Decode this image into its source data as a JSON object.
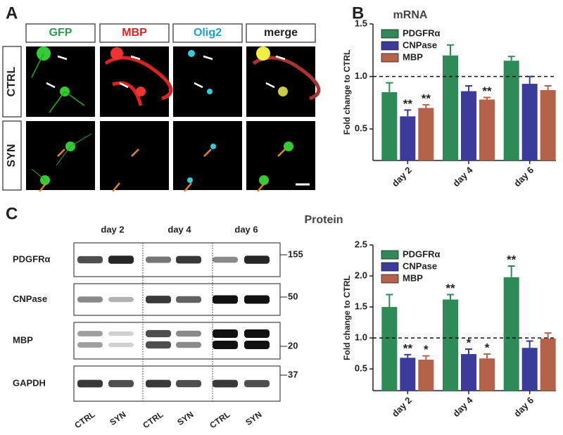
{
  "panel_a": {
    "label": "A",
    "columns": [
      "GFP",
      "MBP",
      "Olig2",
      "merge"
    ],
    "rows": [
      "CTRL",
      "SYN"
    ]
  },
  "panel_b": {
    "label": "B"
  },
  "panel_c": {
    "label": "C",
    "days": [
      "day 2",
      "day 4",
      "day 6"
    ],
    "proteins": [
      "PDGFRα",
      "CNPase",
      "MBP",
      "GAPDH"
    ],
    "markers": [
      "155",
      "50",
      "20",
      "37"
    ],
    "lanes": [
      "CTRL",
      "SYN",
      "CTRL",
      "SYN",
      "CTRL",
      "SYN"
    ]
  },
  "chart_data": [
    {
      "type": "bar",
      "title": "mRNA",
      "ylabel": "Fold change to CTRL",
      "categories": [
        "day 2",
        "day 4",
        "day 6"
      ],
      "series": [
        {
          "name": "PDGFRα",
          "color": "#2e8b57",
          "values": [
            0.85,
            1.2,
            1.15
          ],
          "errors": [
            0.09,
            0.1,
            0.04
          ],
          "stars": [
            null,
            null,
            null
          ]
        },
        {
          "name": "CNPase",
          "color": "#3b3b9c",
          "values": [
            0.62,
            0.86,
            0.93
          ],
          "errors": [
            0.06,
            0.05,
            0.07
          ],
          "stars": [
            "**",
            null,
            null
          ]
        },
        {
          "name": "MBP",
          "color": "#b5624b",
          "values": [
            0.7,
            0.78,
            0.87
          ],
          "errors": [
            0.03,
            0.02,
            0.04
          ],
          "stars": [
            "**",
            "**",
            null
          ]
        }
      ],
      "ylim": [
        0.2,
        1.5
      ],
      "yticks": [
        0.5,
        {
          "value": 1,
          "label": "1.0"
        },
        1.5
      ],
      "reference_line": 1,
      "legend": "upper left"
    },
    {
      "type": "bar",
      "title": "Protein",
      "ylabel": "Fold change to CTRL",
      "categories": [
        "day 2",
        "day 4",
        "day 6"
      ],
      "series": [
        {
          "name": "PDGFRα",
          "color": "#2e8b57",
          "values": [
            1.5,
            1.62,
            1.98
          ],
          "errors": [
            0.2,
            0.08,
            0.18
          ],
          "stars": [
            null,
            "**",
            "**"
          ]
        },
        {
          "name": "CNPase",
          "color": "#3b3b9c",
          "values": [
            0.68,
            0.74,
            0.84
          ],
          "errors": [
            0.05,
            0.08,
            0.11
          ],
          "stars": [
            "**",
            "*",
            null
          ]
        },
        {
          "name": "MBP",
          "color": "#b5624b",
          "values": [
            0.65,
            0.67,
            0.99
          ],
          "errors": [
            0.06,
            0.07,
            0.09
          ],
          "stars": [
            "*",
            "*",
            null
          ]
        }
      ],
      "ylim": [
        0.15,
        2.5
      ],
      "yticks": [
        0.5,
        {
          "value": 1,
          "label": "1.0"
        },
        1.5,
        {
          "value": 2,
          "label": "2.0"
        },
        2.5
      ],
      "reference_line": 1,
      "legend": "upper left"
    }
  ]
}
